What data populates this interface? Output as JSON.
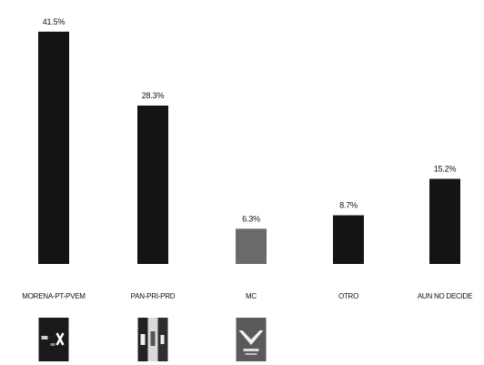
{
  "chart_data": {
    "type": "bar",
    "categories": [
      "MORENA-PT-PVEM",
      "PAN-PRI-PRD",
      "MC",
      "OTRO",
      "AUN NO DECIDE"
    ],
    "values": [
      41.5,
      28.3,
      6.3,
      8.7,
      15.2
    ],
    "data_labels": [
      "41.5%",
      "28.3%",
      "6.3%",
      "8.7%",
      "15.2%"
    ],
    "bar_colors": [
      "#141414",
      "#141414",
      "#6a6a6a",
      "#141414",
      "#141414"
    ],
    "ylim": [
      0,
      45
    ],
    "grid": false,
    "legend": "none",
    "logos": [
      {
        "category": "MORENA-PT-PVEM",
        "icon": "coalition-logo-morena-pt-pvem"
      },
      {
        "category": "PAN-PRI-PRD",
        "icon": "coalition-logo-pan-pri-prd"
      },
      {
        "category": "MC",
        "icon": "party-logo-mc"
      }
    ]
  }
}
